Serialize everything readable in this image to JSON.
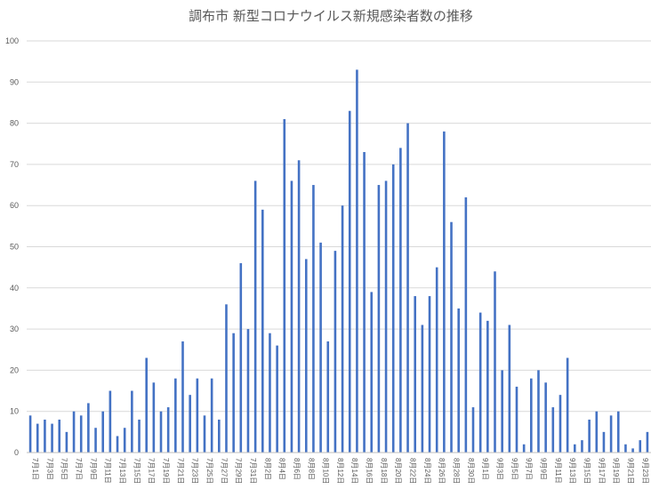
{
  "chart_data": {
    "type": "bar",
    "title": "調布市 新型コロナウイルス新規感染者数の推移",
    "xlabel": "",
    "ylabel": "",
    "ylim": [
      0,
      100
    ],
    "yticks": [
      0,
      10,
      20,
      30,
      40,
      50,
      60,
      70,
      80,
      90,
      100
    ],
    "grid": true,
    "legend": "none",
    "colors": {
      "bar": "#4472c4",
      "grid": "#d9d9d9",
      "text": "#595959"
    },
    "categories": [
      "7月1日",
      "7月2日",
      "7月3日",
      "7月4日",
      "7月5日",
      "7月6日",
      "7月7日",
      "7月8日",
      "7月9日",
      "7月10日",
      "7月11日",
      "7月12日",
      "7月13日",
      "7月14日",
      "7月15日",
      "7月16日",
      "7月17日",
      "7月18日",
      "7月19日",
      "7月20日",
      "7月21日",
      "7月22日",
      "7月23日",
      "7月24日",
      "7月25日",
      "7月26日",
      "7月27日",
      "7月28日",
      "7月29日",
      "7月30日",
      "7月31日",
      "8月1日",
      "8月2日",
      "8月3日",
      "8月4日",
      "8月5日",
      "8月6日",
      "8月7日",
      "8月8日",
      "8月9日",
      "8月10日",
      "8月11日",
      "8月12日",
      "8月13日",
      "8月14日",
      "8月15日",
      "8月16日",
      "8月17日",
      "8月18日",
      "8月19日",
      "8月20日",
      "8月21日",
      "8月22日",
      "8月23日",
      "8月24日",
      "8月25日",
      "8月26日",
      "8月27日",
      "8月28日",
      "8月29日",
      "8月30日",
      "8月31日",
      "9月1日",
      "9月2日",
      "9月3日",
      "9月4日",
      "9月5日",
      "9月6日",
      "9月7日",
      "9月8日",
      "9月9日",
      "9月10日",
      "9月11日",
      "9月12日",
      "9月13日",
      "9月14日",
      "9月15日",
      "9月16日",
      "9月17日",
      "9月18日",
      "9月19日",
      "9月20日",
      "9月21日",
      "9月22日",
      "9月23日",
      "9月24日"
    ],
    "values": [
      9,
      7,
      8,
      7,
      8,
      5,
      10,
      9,
      12,
      6,
      10,
      15,
      4,
      6,
      15,
      8,
      23,
      17,
      10,
      11,
      18,
      27,
      14,
      18,
      9,
      18,
      8,
      36,
      29,
      46,
      30,
      66,
      59,
      29,
      26,
      81,
      66,
      71,
      47,
      65,
      51,
      27,
      49,
      60,
      83,
      93,
      73,
      39,
      65,
      66,
      70,
      74,
      80,
      38,
      31,
      38,
      45,
      78,
      56,
      35,
      62,
      11,
      34,
      32,
      44,
      20,
      31,
      16,
      2,
      18,
      20,
      17,
      11,
      14,
      23,
      2,
      3,
      8,
      10,
      5,
      9,
      10,
      2,
      1,
      3,
      5
    ]
  }
}
